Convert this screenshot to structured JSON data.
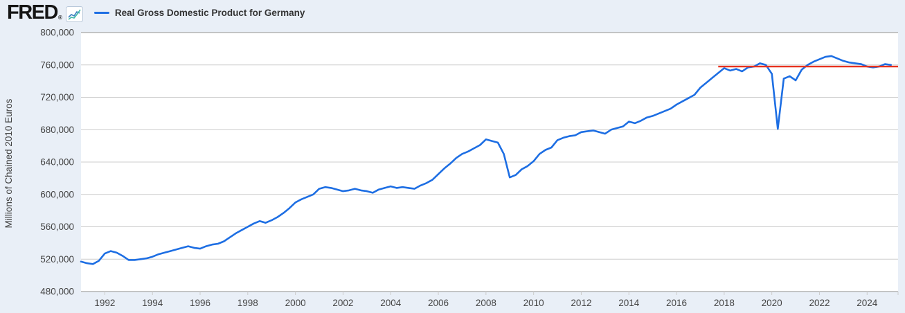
{
  "header": {
    "logo_text": "FRED",
    "logo_mark": "®"
  },
  "legend": {
    "label": "Real Gross Domestic Product for Germany",
    "swatch_color": "#1d6ee3"
  },
  "colors": {
    "page_background": "#e9eff7",
    "plot_background": "#ffffff",
    "gridline": "#cccccc",
    "plot_border": "#b3b3b3",
    "axis_text": "#444444",
    "series_blue": "#1d6ee3",
    "reference_red": "#e8331f"
  },
  "chart_data": {
    "type": "line",
    "title": "Real Gross Domestic Product for Germany",
    "ylabel": "Millions of Chained 2010 Euros",
    "xlabel": "",
    "grid": "horizontal",
    "legend_position": "top-left",
    "ylim": [
      480000,
      800000
    ],
    "y_ticks": [
      480000,
      520000,
      560000,
      600000,
      640000,
      680000,
      720000,
      760000,
      800000
    ],
    "x_min": 1991.0,
    "x_max": 2025.3,
    "x_tick_years": [
      1992,
      1994,
      1996,
      1998,
      2000,
      2002,
      2004,
      2006,
      2008,
      2010,
      2012,
      2014,
      2016,
      2018,
      2020,
      2022,
      2024
    ],
    "series": [
      {
        "name": "Real Gross Domestic Product for Germany",
        "color": "#1d6ee3",
        "frequency": "quarterly",
        "start": "1991-Q1",
        "end": "2025-Q1",
        "values": [
          517000,
          515000,
          514000,
          518000,
          527000,
          530000,
          528000,
          524000,
          519000,
          519000,
          520000,
          521000,
          523000,
          526000,
          528000,
          530000,
          532000,
          534000,
          536000,
          534000,
          533000,
          536000,
          538000,
          539000,
          542000,
          547000,
          552000,
          556000,
          560000,
          564000,
          567000,
          565000,
          568000,
          572000,
          577000,
          583000,
          590000,
          594000,
          597000,
          600000,
          607000,
          609000,
          608000,
          606000,
          604000,
          605000,
          607000,
          605000,
          604000,
          602000,
          606000,
          608000,
          610000,
          608000,
          609000,
          608000,
          607000,
          611000,
          614000,
          618000,
          625000,
          632000,
          638000,
          645000,
          650000,
          653000,
          657000,
          661000,
          668000,
          666000,
          664000,
          650000,
          621000,
          624000,
          631000,
          635000,
          641000,
          650000,
          655000,
          658000,
          667000,
          670000,
          672000,
          673000,
          677000,
          678000,
          679000,
          677000,
          675000,
          680000,
          682000,
          684000,
          690000,
          688000,
          691000,
          695000,
          697000,
          700000,
          703000,
          706000,
          711000,
          715000,
          719000,
          723000,
          732000,
          738000,
          744000,
          750000,
          756000,
          753000,
          755000,
          752000,
          757000,
          758000,
          762000,
          760000,
          749000,
          681000,
          743000,
          746000,
          741000,
          754000,
          760000,
          764000,
          767000,
          770000,
          771000,
          768000,
          765000,
          763000,
          762000,
          761000,
          758000,
          757000,
          758000,
          761000,
          760000
        ]
      },
      {
        "name": "reference-line",
        "type": "horizontal-line",
        "color": "#e8331f",
        "value": 758000,
        "x_start": 2017.75,
        "x_end": 2025.3
      }
    ]
  }
}
